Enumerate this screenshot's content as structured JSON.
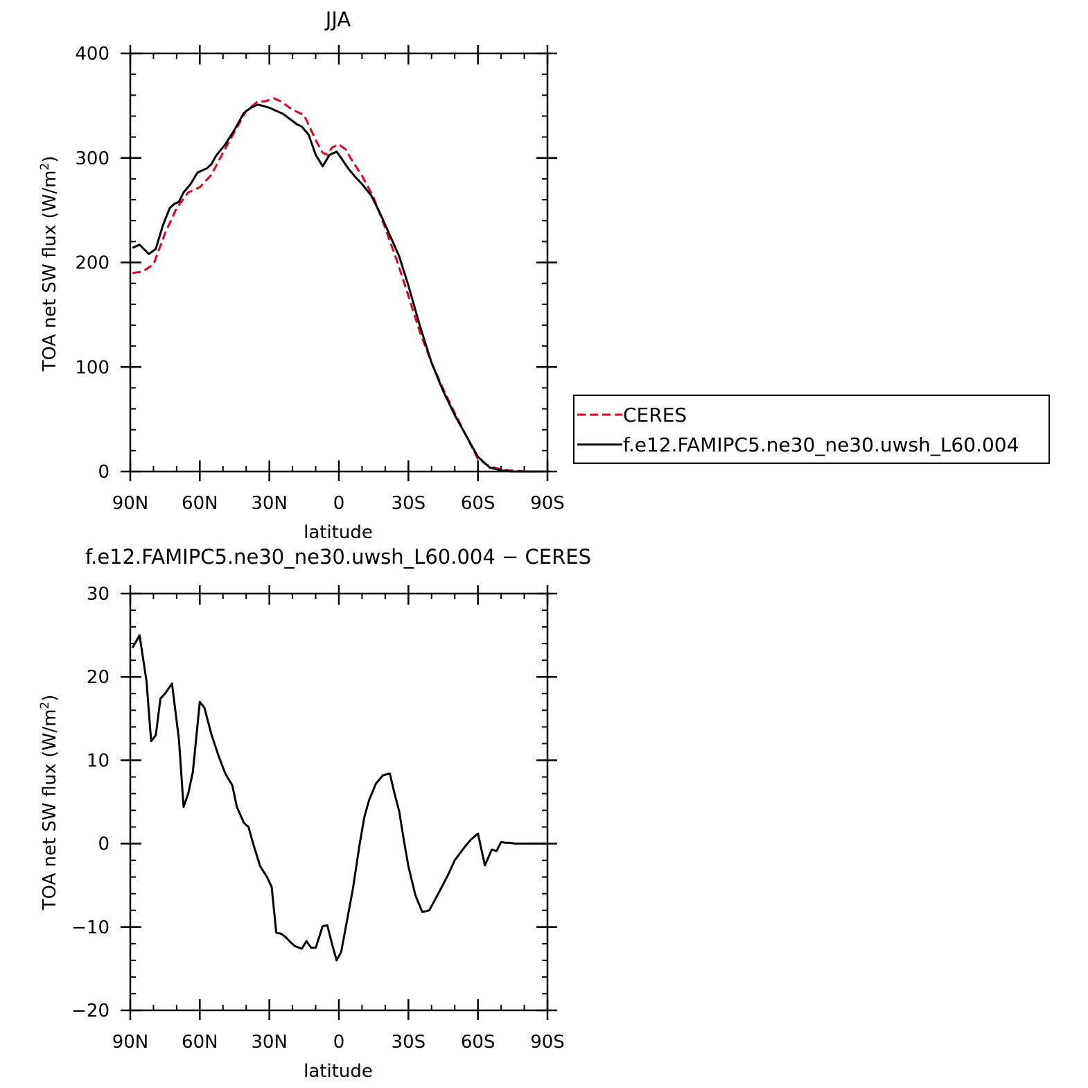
{
  "chart_data": [
    {
      "type": "line",
      "title": "JJA",
      "xlabel": "latitude",
      "ylabel": "TOA net SW flux (W/m",
      "ylabel_sup": "2",
      "ylabel_close": ")",
      "x_direction": "north-to-south",
      "xlim": [
        90,
        -90
      ],
      "ylim": [
        0,
        400
      ],
      "x_ticks": [
        {
          "value": 90,
          "label": "90N"
        },
        {
          "value": 60,
          "label": "60N"
        },
        {
          "value": 30,
          "label": "30N"
        },
        {
          "value": 0,
          "label": "0"
        },
        {
          "value": -30,
          "label": "30S"
        },
        {
          "value": -60,
          "label": "60S"
        },
        {
          "value": -90,
          "label": "90S"
        }
      ],
      "y_ticks": [
        {
          "value": 0,
          "label": "0"
        },
        {
          "value": 100,
          "label": "100"
        },
        {
          "value": 200,
          "label": "200"
        },
        {
          "value": 300,
          "label": "300"
        },
        {
          "value": 400,
          "label": "400"
        }
      ],
      "legend_placement": "right of plot",
      "series": [
        {
          "name": "CERES",
          "color": "#e8001f",
          "dash": "dashed",
          "x": [
            89,
            85,
            80,
            75,
            70,
            65,
            60,
            55,
            50,
            45,
            40,
            35,
            32,
            28,
            25,
            20,
            15,
            10,
            7,
            5,
            3,
            0,
            -3,
            -5,
            -10,
            -15,
            -20,
            -25,
            -30,
            -35,
            -40,
            -45,
            -50,
            -55,
            -60,
            -65,
            -70,
            -75,
            -80,
            -85,
            -90
          ],
          "y": [
            190,
            191,
            198,
            228,
            252,
            267,
            272,
            284,
            305,
            325,
            345,
            354,
            354,
            357,
            354,
            346,
            341,
            317,
            305,
            303,
            310,
            313,
            308,
            300,
            283,
            262,
            233,
            202,
            168,
            133,
            104,
            79,
            56,
            34,
            12,
            5,
            2,
            1,
            0,
            0,
            0
          ]
        },
        {
          "name": "f.e12.FAMIPC5.ne30_ne30.uwsh_L60.004",
          "color": "#000000",
          "dash": "solid",
          "x": [
            89,
            86,
            82,
            79,
            76,
            73,
            71,
            69,
            67,
            64,
            61,
            59,
            57,
            55,
            53,
            49,
            45,
            41,
            38,
            35,
            33,
            30,
            27,
            24,
            21,
            18,
            16,
            13,
            10,
            7,
            4,
            1,
            -1,
            -4,
            -7,
            -10,
            -14,
            -18,
            -22,
            -26,
            -30,
            -35,
            -40,
            -45,
            -50,
            -55,
            -60,
            -65,
            -70,
            -75,
            -80,
            -85,
            -90
          ],
          "y": [
            214,
            217,
            208,
            213,
            235,
            252,
            256,
            258,
            267,
            275,
            286,
            288,
            290,
            294,
            302,
            313,
            327,
            343,
            348,
            351,
            350,
            348,
            345,
            342,
            337,
            332,
            330,
            322,
            303,
            292,
            303,
            306,
            300,
            290,
            282,
            275,
            264,
            246,
            226,
            206,
            178,
            139,
            104,
            77,
            54,
            34,
            14,
            4,
            1,
            0,
            0,
            0,
            0
          ]
        }
      ]
    },
    {
      "type": "line",
      "title": "f.e12.FAMIPC5.ne30_ne30.uwsh_L60.004 − CERES",
      "xlabel": "latitude",
      "ylabel": "TOA net SW flux (W/m",
      "ylabel_sup": "2",
      "ylabel_close": ")",
      "x_direction": "north-to-south",
      "xlim": [
        90,
        -90
      ],
      "ylim": [
        -20,
        30
      ],
      "x_ticks": [
        {
          "value": 90,
          "label": "90N"
        },
        {
          "value": 60,
          "label": "60N"
        },
        {
          "value": 30,
          "label": "30N"
        },
        {
          "value": 0,
          "label": "0"
        },
        {
          "value": -30,
          "label": "30S"
        },
        {
          "value": -60,
          "label": "60S"
        },
        {
          "value": -90,
          "label": "90S"
        }
      ],
      "y_ticks": [
        {
          "value": -20,
          "label": "−20"
        },
        {
          "value": -10,
          "label": "−10"
        },
        {
          "value": 0,
          "label": "0"
        },
        {
          "value": 10,
          "label": "10"
        },
        {
          "value": 20,
          "label": "20"
        },
        {
          "value": 30,
          "label": "30"
        }
      ],
      "series": [
        {
          "color": "#000000",
          "dash": "solid",
          "x": [
            89,
            86,
            83,
            81,
            79,
            77,
            75,
            72,
            69,
            67,
            65,
            63,
            60,
            58,
            55,
            52,
            49,
            46,
            44,
            41,
            39,
            37,
            34,
            31,
            29,
            27,
            25,
            23,
            21,
            19,
            16,
            14,
            12,
            10,
            7,
            5,
            3,
            1,
            -1,
            -3,
            -6,
            -9,
            -11,
            -13,
            -16,
            -19,
            -22,
            -24,
            -26,
            -28,
            -30,
            -33,
            -36,
            -39,
            -41,
            -44,
            -47,
            -50,
            -54,
            -57,
            -60,
            -63,
            -66,
            -68,
            -70,
            -72,
            -74,
            -76,
            -80,
            -84,
            -87,
            -90
          ],
          "y": [
            23.5,
            25,
            19.5,
            12.3,
            13,
            17.4,
            18,
            19.2,
            12.5,
            4.4,
            6,
            8.6,
            17,
            16.3,
            13.1,
            10.6,
            8.4,
            7,
            4.4,
            2.5,
            2,
            0,
            -2.7,
            -4,
            -5.2,
            -10.7,
            -10.8,
            -11.2,
            -11.8,
            -12.3,
            -12.6,
            -11.7,
            -12.5,
            -12.5,
            -9.9,
            -9.8,
            -12,
            -14,
            -13,
            -10,
            -5.5,
            0,
            3.2,
            5.2,
            7.2,
            8.2,
            8.4,
            6,
            3.9,
            0.5,
            -2.7,
            -6.2,
            -8.2,
            -8,
            -7,
            -5.4,
            -3.8,
            -2,
            -0.5,
            0.5,
            1.2,
            -2.6,
            -0.7,
            -0.9,
            0.2,
            0.1,
            0.1,
            0,
            0,
            0,
            0,
            0
          ]
        }
      ]
    }
  ]
}
